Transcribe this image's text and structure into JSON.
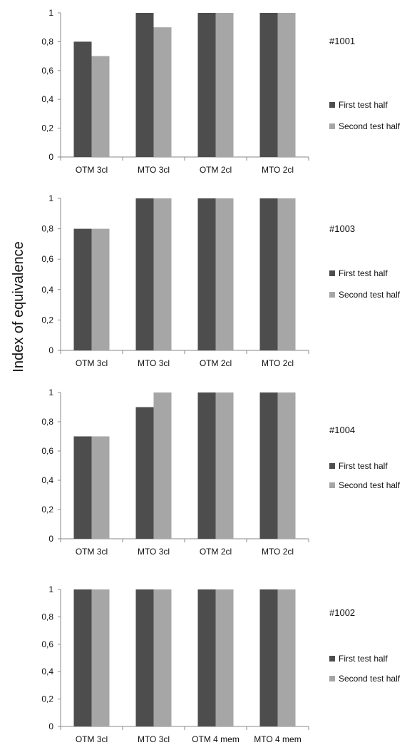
{
  "figure": {
    "ylabel": "Index of equivalence"
  },
  "colors": {
    "first": "#4d4d4d",
    "second": "#a6a6a6",
    "axis": "#8a8a8a"
  },
  "chart_data": [
    {
      "type": "bar",
      "title": "#1001",
      "categories": [
        "OTM 3cl",
        "MTO 3cl",
        "OTM 2cl",
        "MTO 2cl"
      ],
      "series": [
        {
          "name": "First test half",
          "values": [
            0.8,
            1,
            1,
            1
          ]
        },
        {
          "name": "Second test half",
          "values": [
            0.7,
            0.9,
            1,
            1
          ]
        }
      ],
      "yticks": [
        "0",
        "0,2",
        "0,4",
        "0,6",
        "0,8",
        "1"
      ],
      "ylim": [
        0,
        1
      ],
      "grid": false,
      "legend": "right"
    },
    {
      "type": "bar",
      "title": "#1003",
      "categories": [
        "OTM 3cl",
        "MTO 3cl",
        "OTM 2cl",
        "MTO 2cl"
      ],
      "series": [
        {
          "name": "First test half",
          "values": [
            0.8,
            1,
            1,
            1
          ]
        },
        {
          "name": "Second test half",
          "values": [
            0.8,
            1,
            1,
            1
          ]
        }
      ],
      "yticks": [
        "0",
        "0,2",
        "0,4",
        "0,6",
        "0,8",
        "1"
      ],
      "ylim": [
        0,
        1
      ],
      "grid": false,
      "legend": "right"
    },
    {
      "type": "bar",
      "title": "#1004",
      "categories": [
        "OTM 3cl",
        "MTO 3cl",
        "OTM 2cl",
        "MTO 2cl"
      ],
      "series": [
        {
          "name": "First test half",
          "values": [
            0.7,
            0.9,
            1,
            1
          ]
        },
        {
          "name": "Second test half",
          "values": [
            0.7,
            1,
            1,
            1
          ]
        }
      ],
      "yticks": [
        "0",
        "0,2",
        "0,4",
        "0,6",
        "0,8",
        "1"
      ],
      "ylim": [
        0,
        1
      ],
      "grid": false,
      "legend": "right"
    },
    {
      "type": "bar",
      "title": "#1002",
      "categories": [
        "OTM 3cl",
        "MTO 3cl",
        "OTM 4 mem",
        "MTO 4 mem"
      ],
      "series": [
        {
          "name": "First test half",
          "values": [
            1,
            1,
            1,
            1
          ]
        },
        {
          "name": "Second test half",
          "values": [
            1,
            1,
            1,
            1
          ]
        }
      ],
      "yticks": [
        "0",
        "0,2",
        "0,4",
        "0,6",
        "0,8",
        "1"
      ],
      "ylim": [
        0,
        1
      ],
      "grid": false,
      "legend": "right"
    }
  ]
}
